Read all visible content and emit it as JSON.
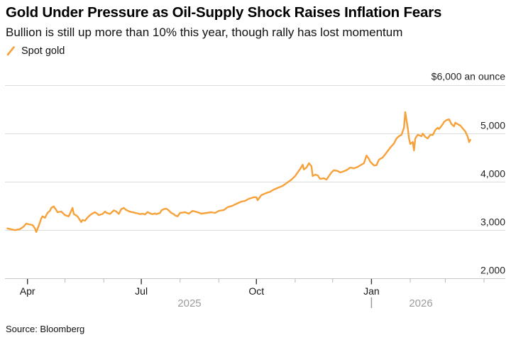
{
  "header": {
    "title": "Gold Under Pressure as Oil-Supply Shock Raises Inflation Fears",
    "subtitle": "Bullion is still up more than 10% this year, though rally has lost momentum"
  },
  "legend": {
    "items": [
      {
        "label": "Spot gold",
        "swatch": "diagonal-line",
        "color": "#F6A13A"
      }
    ]
  },
  "footer": {
    "source": "Source: Bloomberg"
  },
  "chart_data": {
    "type": "line",
    "title": "Gold Under Pressure as Oil-Supply Shock Raises Inflation Fears",
    "subtitle": "Bullion is still up more than 10% this year, though rally has lost momentum",
    "legend_position": "top-left",
    "grid": "horizontal-only",
    "colors": {
      "line": "#F6A13A",
      "grid": "#DBDBDB",
      "axis": "#C6C6C6",
      "major_tick": "#333333",
      "minor_tick": "#B8B8B8",
      "month_label": "#161616",
      "year_label": "#9B9B9B",
      "value_label": "#222222"
    },
    "y_axis": {
      "range": [
        2000,
        6000
      ],
      "top_label": "$6,000 an ounce",
      "gridlines": [
        6000,
        5000,
        4000,
        3000
      ],
      "ticks": [
        {
          "value": 5000,
          "label": "5,000"
        },
        {
          "value": 4000,
          "label": "4,000"
        },
        {
          "value": 3000,
          "label": "3,000"
        },
        {
          "value": 2000,
          "label": "2,000"
        }
      ]
    },
    "x_axis": {
      "domain": [
        "2025-03-14",
        "2026-04-18"
      ],
      "year_labels": [
        "2025",
        "2026"
      ],
      "year_divider_date": "2026-01-01",
      "ticks": [
        {
          "date": "2025-04-01",
          "label": "Apr",
          "major": true
        },
        {
          "date": "2025-05-01",
          "major": false
        },
        {
          "date": "2025-06-01",
          "major": false
        },
        {
          "date": "2025-07-01",
          "label": "Jul",
          "major": true
        },
        {
          "date": "2025-08-01",
          "major": false
        },
        {
          "date": "2025-09-01",
          "major": false
        },
        {
          "date": "2025-10-01",
          "label": "Oct",
          "major": true
        },
        {
          "date": "2025-11-01",
          "major": false
        },
        {
          "date": "2025-12-01",
          "major": false
        },
        {
          "date": "2026-01-01",
          "label": "Jan",
          "major": true
        },
        {
          "date": "2026-02-01",
          "major": false
        },
        {
          "date": "2026-03-01",
          "major": false
        },
        {
          "date": "2026-04-01",
          "major": false
        }
      ]
    },
    "series": [
      {
        "name": "Spot gold",
        "color": "#F6A13A",
        "unit": "USD per ounce",
        "points": [
          [
            "2025-03-16",
            3040
          ],
          [
            "2025-03-19",
            3020
          ],
          [
            "2025-03-22",
            3005
          ],
          [
            "2025-03-26",
            3025
          ],
          [
            "2025-03-29",
            3080
          ],
          [
            "2025-03-31",
            3140
          ],
          [
            "2025-04-02",
            3125
          ],
          [
            "2025-04-05",
            3110
          ],
          [
            "2025-04-07",
            3040
          ],
          [
            "2025-04-08",
            2965
          ],
          [
            "2025-04-10",
            3095
          ],
          [
            "2025-04-12",
            3245
          ],
          [
            "2025-04-13",
            3290
          ],
          [
            "2025-04-15",
            3260
          ],
          [
            "2025-04-17",
            3360
          ],
          [
            "2025-04-19",
            3405
          ],
          [
            "2025-04-20",
            3465
          ],
          [
            "2025-04-22",
            3495
          ],
          [
            "2025-04-24",
            3420
          ],
          [
            "2025-04-25",
            3375
          ],
          [
            "2025-04-28",
            3390
          ],
          [
            "2025-05-01",
            3315
          ],
          [
            "2025-05-04",
            3290
          ],
          [
            "2025-05-07",
            3465
          ],
          [
            "2025-05-08",
            3340
          ],
          [
            "2025-05-11",
            3290
          ],
          [
            "2025-05-14",
            3170
          ],
          [
            "2025-05-15",
            3215
          ],
          [
            "2025-05-17",
            3200
          ],
          [
            "2025-05-19",
            3265
          ],
          [
            "2025-05-21",
            3315
          ],
          [
            "2025-05-23",
            3350
          ],
          [
            "2025-05-25",
            3375
          ],
          [
            "2025-05-27",
            3340
          ],
          [
            "2025-05-28",
            3315
          ],
          [
            "2025-05-31",
            3340
          ],
          [
            "2025-06-02",
            3390
          ],
          [
            "2025-06-03",
            3365
          ],
          [
            "2025-06-06",
            3340
          ],
          [
            "2025-06-07",
            3365
          ],
          [
            "2025-06-09",
            3415
          ],
          [
            "2025-06-11",
            3390
          ],
          [
            "2025-06-13",
            3340
          ],
          [
            "2025-06-15",
            3440
          ],
          [
            "2025-06-17",
            3465
          ],
          [
            "2025-06-19",
            3420
          ],
          [
            "2025-06-21",
            3395
          ],
          [
            "2025-06-23",
            3380
          ],
          [
            "2025-06-25",
            3370
          ],
          [
            "2025-06-26",
            3360
          ],
          [
            "2025-06-29",
            3345
          ],
          [
            "2025-06-30",
            3335
          ],
          [
            "2025-07-02",
            3345
          ],
          [
            "2025-07-04",
            3330
          ],
          [
            "2025-07-06",
            3380
          ],
          [
            "2025-07-08",
            3350
          ],
          [
            "2025-07-10",
            3335
          ],
          [
            "2025-07-12",
            3350
          ],
          [
            "2025-07-13",
            3335
          ],
          [
            "2025-07-16",
            3360
          ],
          [
            "2025-07-17",
            3410
          ],
          [
            "2025-07-19",
            3440
          ],
          [
            "2025-07-21",
            3450
          ],
          [
            "2025-07-23",
            3410
          ],
          [
            "2025-07-25",
            3360
          ],
          [
            "2025-07-27",
            3335
          ],
          [
            "2025-07-28",
            3310
          ],
          [
            "2025-07-30",
            3290
          ],
          [
            "2025-08-01",
            3360
          ],
          [
            "2025-08-05",
            3375
          ],
          [
            "2025-08-08",
            3345
          ],
          [
            "2025-08-11",
            3405
          ],
          [
            "2025-08-15",
            3375
          ],
          [
            "2025-08-18",
            3345
          ],
          [
            "2025-08-22",
            3360
          ],
          [
            "2025-08-26",
            3375
          ],
          [
            "2025-08-29",
            3360
          ],
          [
            "2025-09-01",
            3405
          ],
          [
            "2025-09-05",
            3420
          ],
          [
            "2025-09-08",
            3480
          ],
          [
            "2025-09-12",
            3510
          ],
          [
            "2025-09-15",
            3550
          ],
          [
            "2025-09-19",
            3595
          ],
          [
            "2025-09-22",
            3610
          ],
          [
            "2025-09-25",
            3655
          ],
          [
            "2025-09-29",
            3685
          ],
          [
            "2025-10-01",
            3685
          ],
          [
            "2025-10-02",
            3625
          ],
          [
            "2025-10-05",
            3730
          ],
          [
            "2025-10-09",
            3775
          ],
          [
            "2025-10-12",
            3800
          ],
          [
            "2025-10-15",
            3845
          ],
          [
            "2025-10-19",
            3890
          ],
          [
            "2025-10-22",
            3920
          ],
          [
            "2025-10-26",
            3995
          ],
          [
            "2025-10-29",
            4050
          ],
          [
            "2025-11-01",
            4125
          ],
          [
            "2025-11-03",
            4200
          ],
          [
            "2025-11-05",
            4270
          ],
          [
            "2025-11-07",
            4360
          ],
          [
            "2025-11-08",
            4260
          ],
          [
            "2025-11-10",
            4300
          ],
          [
            "2025-11-12",
            4390
          ],
          [
            "2025-11-14",
            4330
          ],
          [
            "2025-11-15",
            4125
          ],
          [
            "2025-11-17",
            4155
          ],
          [
            "2025-11-19",
            4140
          ],
          [
            "2025-11-21",
            4065
          ],
          [
            "2025-11-24",
            4080
          ],
          [
            "2025-11-26",
            4050
          ],
          [
            "2025-11-28",
            4125
          ],
          [
            "2025-11-30",
            4200
          ],
          [
            "2025-12-02",
            4245
          ],
          [
            "2025-12-05",
            4230
          ],
          [
            "2025-12-07",
            4200
          ],
          [
            "2025-12-09",
            4215
          ],
          [
            "2025-12-12",
            4245
          ],
          [
            "2025-12-15",
            4300
          ],
          [
            "2025-12-18",
            4285
          ],
          [
            "2025-12-21",
            4315
          ],
          [
            "2025-12-23",
            4345
          ],
          [
            "2025-12-26",
            4390
          ],
          [
            "2025-12-28",
            4550
          ],
          [
            "2025-12-30",
            4480
          ],
          [
            "2025-12-31",
            4420
          ],
          [
            "2026-01-03",
            4345
          ],
          [
            "2026-01-05",
            4350
          ],
          [
            "2026-01-07",
            4465
          ],
          [
            "2026-01-10",
            4510
          ],
          [
            "2026-01-13",
            4610
          ],
          [
            "2026-01-16",
            4715
          ],
          [
            "2026-01-19",
            4800
          ],
          [
            "2026-01-21",
            4905
          ],
          [
            "2026-01-23",
            4950
          ],
          [
            "2026-01-25",
            4980
          ],
          [
            "2026-01-27",
            5125
          ],
          [
            "2026-01-28",
            5450
          ],
          [
            "2026-01-30",
            5125
          ],
          [
            "2026-01-31",
            4905
          ],
          [
            "2026-02-01",
            4790
          ],
          [
            "2026-02-03",
            4830
          ],
          [
            "2026-02-04",
            4655
          ],
          [
            "2026-02-05",
            4905
          ],
          [
            "2026-02-07",
            4980
          ],
          [
            "2026-02-10",
            4950
          ],
          [
            "2026-02-11",
            5005
          ],
          [
            "2026-02-13",
            4935
          ],
          [
            "2026-02-15",
            4905
          ],
          [
            "2026-02-17",
            4980
          ],
          [
            "2026-02-19",
            4975
          ],
          [
            "2026-02-21",
            5080
          ],
          [
            "2026-02-23",
            5125
          ],
          [
            "2026-02-24",
            5100
          ],
          [
            "2026-02-27",
            5200
          ],
          [
            "2026-02-28",
            5245
          ],
          [
            "2026-03-02",
            5285
          ],
          [
            "2026-03-04",
            5300
          ],
          [
            "2026-03-06",
            5200
          ],
          [
            "2026-03-08",
            5155
          ],
          [
            "2026-03-09",
            5230
          ],
          [
            "2026-03-11",
            5200
          ],
          [
            "2026-03-13",
            5170
          ],
          [
            "2026-03-16",
            5080
          ],
          [
            "2026-03-17",
            5050
          ],
          [
            "2026-03-19",
            4935
          ],
          [
            "2026-03-20",
            4830
          ],
          [
            "2026-03-21",
            4875
          ]
        ]
      }
    ]
  }
}
